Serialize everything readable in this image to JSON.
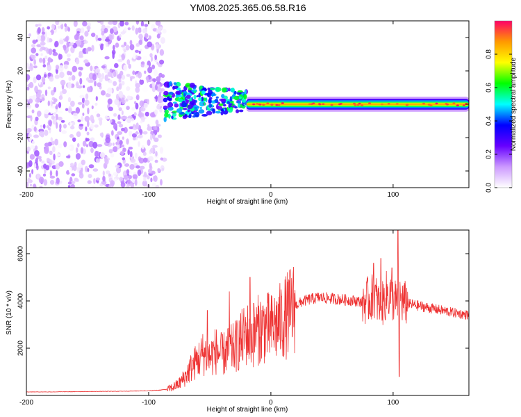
{
  "title": "YM08.2025.365.06.58.R16",
  "chart_data": [
    {
      "type": "heatmap",
      "title": "YM08.2025.365.06.58.R16",
      "xlabel": "Height of straight line (km)",
      "ylabel": "Frequency (Hz)",
      "xlim": [
        -200,
        162
      ],
      "ylim": [
        -50,
        50
      ],
      "xticks": [
        -200,
        -100,
        0,
        100
      ],
      "yticks": [
        -40,
        -20,
        0,
        20,
        40
      ],
      "colorbar": {
        "label": "Normalized spectral amplitude",
        "range": [
          0,
          1
        ],
        "ticks": [
          0.0,
          0.2,
          0.4,
          0.6,
          0.8
        ],
        "tick_labels": [
          "0.0",
          "0.2",
          "0.4",
          "0.6",
          "0.8"
        ],
        "colormap": [
          "#ffffff",
          "#cc99ff",
          "#6600ff",
          "#0000ff",
          "#00ffff",
          "#00ff00",
          "#ffff00",
          "#ff9900",
          "#ff0066"
        ]
      },
      "regions": [
        {
          "name": "noise",
          "x": [
            -200,
            -87
          ],
          "freq": [
            -50,
            50
          ],
          "amplitude": 0.15
        },
        {
          "name": "broadband-band",
          "x": [
            -87,
            -20
          ],
          "freq": [
            -8,
            15
          ],
          "amplitude": 0.45
        },
        {
          "name": "ridge",
          "x": [
            -20,
            162
          ],
          "freq": [
            -2,
            2
          ],
          "amplitude": 0.9
        }
      ]
    },
    {
      "type": "line",
      "xlabel": "Height of straight line (km)",
      "ylabel": "SNR (10 * v/v)",
      "xlim": [
        -200,
        162
      ],
      "ylim": [
        0,
        7000
      ],
      "xticks": [
        -200,
        -100,
        0,
        100
      ],
      "yticks": [
        2000,
        4000,
        6000
      ],
      "color": "#ee3333",
      "series": [
        {
          "name": "SNR",
          "x": [
            -200,
            -180,
            -160,
            -140,
            -120,
            -100,
            -90,
            -85,
            -80,
            -75,
            -70,
            -65,
            -60,
            -55,
            -50,
            -45,
            -40,
            -35,
            -30,
            -25,
            -20,
            -15,
            -10,
            -5,
            0,
            5,
            10,
            15,
            20,
            25,
            30,
            35,
            40,
            50,
            60,
            70,
            75,
            80,
            85,
            90,
            95,
            100,
            103,
            105,
            107,
            110,
            120,
            130,
            140,
            150,
            162
          ],
          "y": [
            150,
            150,
            160,
            170,
            180,
            200,
            230,
            260,
            350,
            500,
            800,
            1200,
            1500,
            1800,
            1600,
            1900,
            1700,
            1900,
            2000,
            2300,
            2600,
            2500,
            2800,
            2900,
            2800,
            3000,
            3200,
            3500,
            3800,
            3950,
            4050,
            4100,
            4150,
            4100,
            4050,
            4000,
            3950,
            4050,
            4200,
            3700,
            4300,
            4100,
            3900,
            4100,
            4000,
            3900,
            3800,
            3700,
            3600,
            3500,
            3400
          ]
        }
      ],
      "spikes": [
        {
          "x": -52,
          "y": 3600
        },
        {
          "x": -34,
          "y": 4400
        },
        {
          "x": -17,
          "y": 5000
        },
        {
          "x": -14,
          "y": 3900
        },
        {
          "x": 84,
          "y": 5600
        },
        {
          "x": 90,
          "y": 5800
        },
        {
          "x": 99,
          "y": 5400
        },
        {
          "x": 104,
          "y": 7000
        },
        {
          "x": 105,
          "y": 800
        }
      ]
    }
  ]
}
